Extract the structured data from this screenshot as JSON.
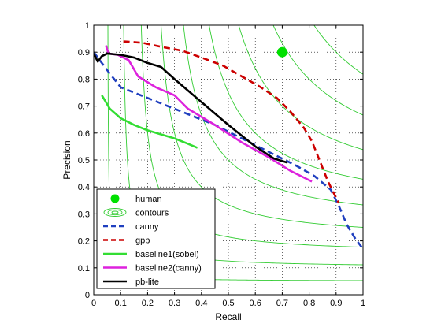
{
  "chart_data": {
    "type": "line",
    "title": "",
    "xlabel": "Recall",
    "ylabel": "Precision",
    "xlim": [
      0,
      1
    ],
    "ylim": [
      0,
      1
    ],
    "x_ticks": [
      "0",
      "0.1",
      "0.2",
      "0.3",
      "0.4",
      "0.5",
      "0.6",
      "0.7",
      "0.8",
      "0.9",
      "1"
    ],
    "y_ticks": [
      "0",
      "0.1",
      "0.2",
      "0.3",
      "0.4",
      "0.5",
      "0.6",
      "0.7",
      "0.8",
      "0.9",
      "1"
    ],
    "grid": true,
    "grid_style": "dotted",
    "legend_position": "bottom-left",
    "contour_color": "#33cc33",
    "contour_levels": [
      0.1,
      0.2,
      0.3,
      0.4,
      0.5,
      0.6,
      0.7,
      0.8,
      0.9
    ],
    "series": [
      {
        "name": "human",
        "kind": "marker",
        "color": "#00e000",
        "points": [
          [
            0.7,
            0.9
          ]
        ]
      },
      {
        "name": "contours",
        "kind": "contour",
        "color": "#33cc33",
        "points": []
      },
      {
        "name": "canny",
        "kind": "line",
        "color": "#1f3fbf",
        "dash": "dashed",
        "points": [
          [
            0.0,
            0.9
          ],
          [
            0.03,
            0.86
          ],
          [
            0.06,
            0.82
          ],
          [
            0.1,
            0.77
          ],
          [
            0.15,
            0.75
          ],
          [
            0.25,
            0.71
          ],
          [
            0.35,
            0.67
          ],
          [
            0.45,
            0.63
          ],
          [
            0.55,
            0.58
          ],
          [
            0.65,
            0.53
          ],
          [
            0.75,
            0.48
          ],
          [
            0.82,
            0.44
          ],
          [
            0.88,
            0.39
          ],
          [
            0.91,
            0.33
          ],
          [
            0.94,
            0.26
          ],
          [
            0.97,
            0.21
          ],
          [
            1.0,
            0.17
          ]
        ]
      },
      {
        "name": "gpb",
        "kind": "line",
        "color": "#cc0000",
        "dash": "dashed",
        "points": [
          [
            0.11,
            0.94
          ],
          [
            0.18,
            0.935
          ],
          [
            0.25,
            0.92
          ],
          [
            0.33,
            0.905
          ],
          [
            0.4,
            0.88
          ],
          [
            0.48,
            0.85
          ],
          [
            0.55,
            0.81
          ],
          [
            0.62,
            0.77
          ],
          [
            0.68,
            0.73
          ],
          [
            0.73,
            0.68
          ],
          [
            0.78,
            0.62
          ],
          [
            0.81,
            0.57
          ],
          [
            0.83,
            0.52
          ],
          [
            0.85,
            0.47
          ],
          [
            0.87,
            0.42
          ],
          [
            0.89,
            0.38
          ],
          [
            0.91,
            0.34
          ]
        ]
      },
      {
        "name": "baseline1(sobel)",
        "kind": "line",
        "color": "#33dd33",
        "dash": "solid",
        "points": [
          [
            0.03,
            0.74
          ],
          [
            0.06,
            0.69
          ],
          [
            0.1,
            0.655
          ],
          [
            0.15,
            0.63
          ],
          [
            0.2,
            0.61
          ],
          [
            0.25,
            0.595
          ],
          [
            0.3,
            0.58
          ],
          [
            0.35,
            0.56
          ],
          [
            0.385,
            0.545
          ]
        ]
      },
      {
        "name": "baseline2(canny)",
        "kind": "line",
        "color": "#dd22dd",
        "dash": "solid",
        "points": [
          [
            0.045,
            0.925
          ],
          [
            0.055,
            0.895
          ],
          [
            0.09,
            0.89
          ],
          [
            0.13,
            0.87
          ],
          [
            0.165,
            0.81
          ],
          [
            0.23,
            0.77
          ],
          [
            0.3,
            0.74
          ],
          [
            0.35,
            0.69
          ],
          [
            0.45,
            0.63
          ],
          [
            0.55,
            0.565
          ],
          [
            0.65,
            0.51
          ],
          [
            0.73,
            0.46
          ],
          [
            0.81,
            0.42
          ]
        ]
      },
      {
        "name": "pb-lite",
        "kind": "line",
        "color": "#000000",
        "dash": "solid",
        "points": [
          [
            0.0,
            0.895
          ],
          [
            0.015,
            0.865
          ],
          [
            0.03,
            0.885
          ],
          [
            0.05,
            0.895
          ],
          [
            0.1,
            0.89
          ],
          [
            0.15,
            0.88
          ],
          [
            0.2,
            0.86
          ],
          [
            0.25,
            0.845
          ],
          [
            0.3,
            0.8
          ],
          [
            0.4,
            0.715
          ],
          [
            0.5,
            0.63
          ],
          [
            0.6,
            0.55
          ],
          [
            0.67,
            0.505
          ],
          [
            0.72,
            0.49
          ]
        ]
      }
    ]
  }
}
